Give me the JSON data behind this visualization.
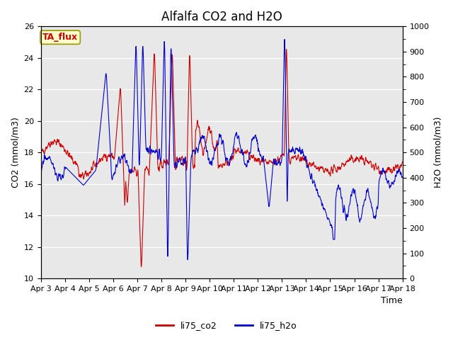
{
  "title": "Alfalfa CO2 and H2O",
  "xlabel": "Time",
  "ylabel_left": "CO2 (mmol/m3)",
  "ylabel_right": "H2O (mmol/m3)",
  "ylim_left": [
    10,
    26
  ],
  "ylim_right": [
    0,
    1000
  ],
  "yticks_left": [
    10,
    12,
    14,
    16,
    18,
    20,
    22,
    24,
    26
  ],
  "yticks_right": [
    0,
    100,
    200,
    300,
    400,
    500,
    600,
    700,
    800,
    900,
    1000
  ],
  "color_co2": "#cc0000",
  "color_h2o": "#0000cc",
  "fig_bg_color": "#ffffff",
  "plot_bg_color": "#e8e8e8",
  "label_box_color": "#ffffcc",
  "label_box_edge": "#999900",
  "label_text": "TA_flux",
  "label_text_color": "#cc0000",
  "legend_co2": "li75_co2",
  "legend_h2o": "li75_h2o",
  "x_tick_labels": [
    "Apr 3",
    "Apr 4",
    "Apr 5",
    "Apr 6",
    "Apr 7",
    "Apr 8",
    "Apr 9",
    "Apr 10",
    "Apr 11",
    "Apr 12",
    "Apr 13",
    "Apr 14",
    "Apr 15",
    "Apr 16",
    "Apr 17",
    "Apr 18"
  ],
  "title_fontsize": 12,
  "axis_label_fontsize": 9,
  "tick_fontsize": 8
}
